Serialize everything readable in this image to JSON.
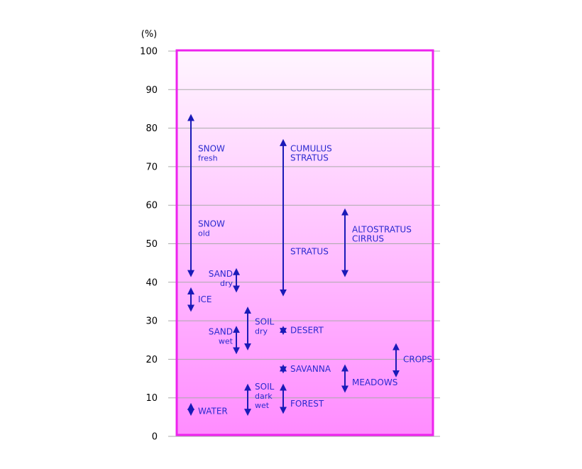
{
  "chart_data": {
    "type": "range",
    "unit_label": "(%)",
    "ylim": [
      0,
      100
    ],
    "yticks": [
      "0",
      "10",
      "20",
      "30",
      "40",
      "50",
      "60",
      "70",
      "80",
      "90",
      "100"
    ],
    "grid": true,
    "colors": {
      "frame": "#ee22ee",
      "grid": "#aaaaaa",
      "bars": "#1a1ab8",
      "labels": "#2a2ad0",
      "fill_top": "#fff6ff",
      "fill_bottom": "#ff8cff"
    },
    "ranges": [
      {
        "lines": [
          "SNOW",
          "fresh"
        ],
        "low": 41.5,
        "high": 83.5,
        "col": 1,
        "side": "right"
      },
      {
        "lines": [
          "SNOW",
          "old"
        ],
        "low": 41.5,
        "high": 83.5,
        "col": 1,
        "side": "right"
      },
      {
        "lines": [
          "ICE"
        ],
        "low": 32.5,
        "high": 38.5,
        "col": 1,
        "side": "right"
      },
      {
        "lines": [
          "WATER"
        ],
        "low": 5.5,
        "high": 8.5,
        "col": 1,
        "side": "right"
      },
      {
        "lines": [
          "SAND",
          "dry"
        ],
        "low": 37.5,
        "high": 43.5,
        "col": 2,
        "side": "left"
      },
      {
        "lines": [
          "SAND",
          "wet"
        ],
        "low": 21.5,
        "high": 28.5,
        "col": 2,
        "side": "left"
      },
      {
        "lines": [
          "SOIL",
          "dry"
        ],
        "low": 22.5,
        "high": 33.5,
        "col": 3,
        "side": "right"
      },
      {
        "lines": [
          "SOIL",
          "dark",
          "wet"
        ],
        "low": 5.5,
        "high": 13.5,
        "col": 3,
        "side": "right"
      },
      {
        "lines": [
          "CUMULUS",
          "STRATUS"
        ],
        "low": 36.5,
        "high": 77.0,
        "col": 4,
        "side": "right"
      },
      {
        "lines": [
          "STRATUS"
        ],
        "low": 36.5,
        "high": 77.0,
        "col": 4,
        "side": "right"
      },
      {
        "lines": [
          "DESERT"
        ],
        "low": 26.5,
        "high": 28.5,
        "col": 4,
        "side": "right"
      },
      {
        "lines": [
          "SAVANNA"
        ],
        "low": 16.5,
        "high": 18.5,
        "col": 4,
        "side": "right"
      },
      {
        "lines": [
          "FOREST"
        ],
        "low": 6.0,
        "high": 13.5,
        "col": 4,
        "side": "right"
      },
      {
        "lines": [
          "ALTOSTRATUS",
          "CIRRUS"
        ],
        "low": 41.5,
        "high": 59.0,
        "col": 5,
        "side": "right"
      },
      {
        "lines": [
          "MEADOWS"
        ],
        "low": 11.5,
        "high": 18.5,
        "col": 5,
        "side": "right"
      },
      {
        "lines": [
          "CROPS"
        ],
        "low": 15.5,
        "high": 24.0,
        "col": 6,
        "side": "right"
      }
    ]
  }
}
